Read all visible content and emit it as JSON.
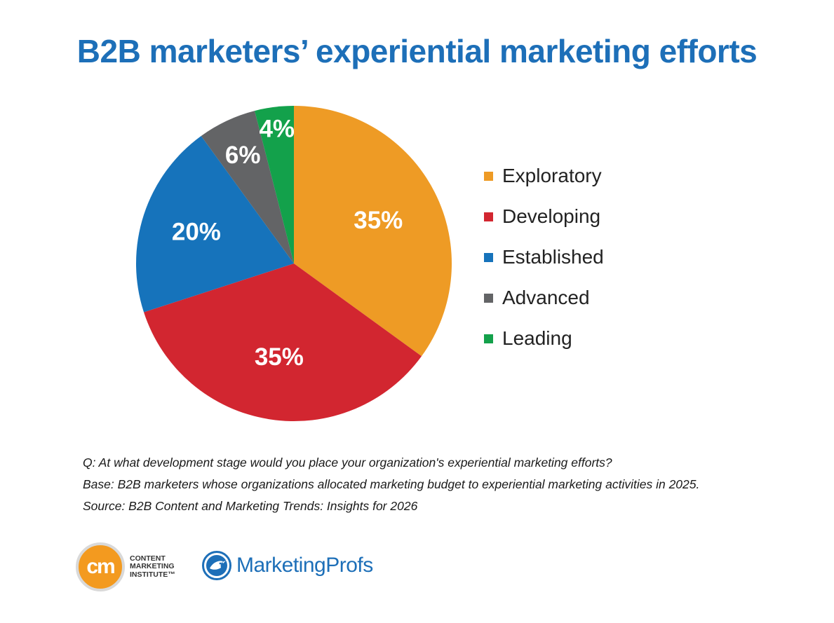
{
  "title": "B2B marketers’ experiential marketing efforts",
  "chart_data": {
    "type": "pie",
    "title": "B2B marketers’ experiential marketing efforts",
    "slices": [
      {
        "label": "Exploratory",
        "value": 35,
        "display": "35%",
        "color": "#ee9b25"
      },
      {
        "label": "Developing",
        "value": 35,
        "display": "35%",
        "color": "#d22630"
      },
      {
        "label": "Established",
        "value": 20,
        "display": "20%",
        "color": "#1673bb"
      },
      {
        "label": "Advanced",
        "value": 6,
        "display": "6%",
        "color": "#636466"
      },
      {
        "label": "Leading",
        "value": 4,
        "display": "4%",
        "color": "#13a14b"
      }
    ],
    "start": "top, clockwise",
    "legend_position": "right"
  },
  "notes": {
    "question": "Q: At what development stage would you place your organization's experiential marketing efforts?",
    "base": "Base: B2B marketers whose organizations allocated marketing budget to experiential marketing activities in 2025.",
    "source": "Source: B2B Content and Marketing Trends: Insights for 2026"
  },
  "logos": {
    "cmi_mark": "cm",
    "cmi_line1": "CONTENT",
    "cmi_line2": "MARKETING",
    "cmi_line3": "INSTITUTE™",
    "marketingprofs": "MarketingProfs"
  },
  "colors": {
    "title": "#1d6fb8"
  }
}
